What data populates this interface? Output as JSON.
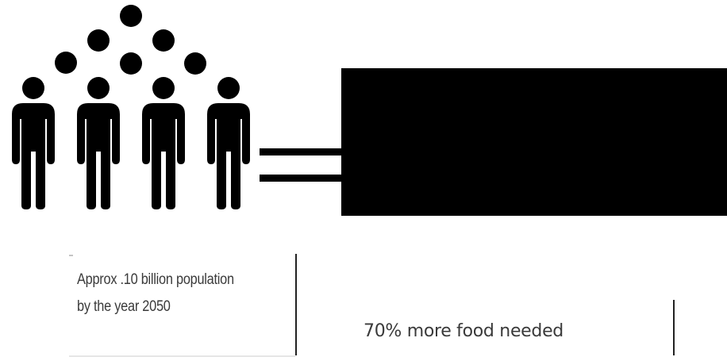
{
  "people": {
    "icon": "person-icon",
    "count": 4,
    "dots": 10,
    "color": "#000000"
  },
  "equals": {
    "icon": "equals-sign-icon"
  },
  "result_box": {
    "color": "#000000"
  },
  "captions": {
    "population_line1": "Approx .10 billion population",
    "population_line2": "by the year 2050",
    "food": "70% more food needed"
  }
}
